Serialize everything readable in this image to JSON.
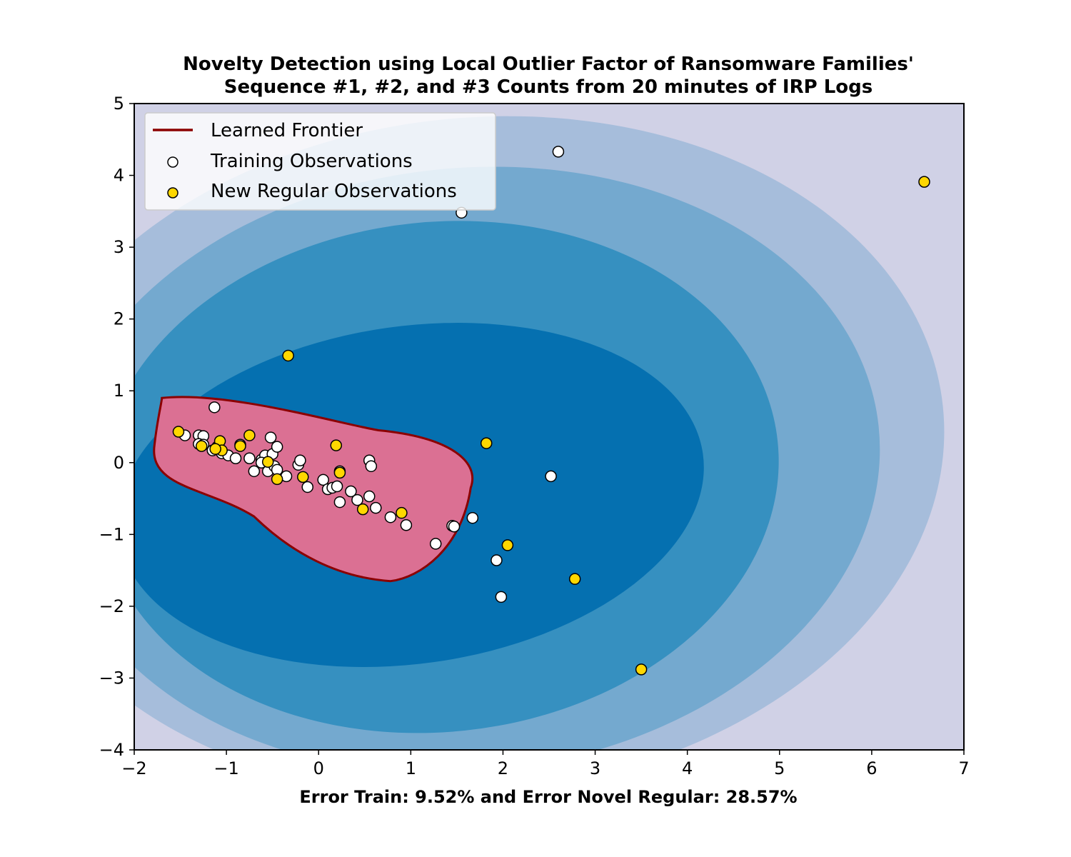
{
  "chart_data": {
    "type": "scatter",
    "title": [
      "Novelty Detection using Local Outlier Factor of Ransomware Families'",
      "Sequence #1, #2, and #3 Counts from 20 minutes of IRP Logs"
    ],
    "xlabel": "Error Train: 9.52% and Error Novel Regular: 28.57%",
    "ylabel": "",
    "xlim": [
      -2,
      7
    ],
    "ylim": [
      -4,
      5
    ],
    "xticks": [
      {
        "value": -2,
        "label": "−2"
      },
      {
        "value": -1,
        "label": "−1"
      },
      {
        "value": 0,
        "label": "0"
      },
      {
        "value": 1,
        "label": "1"
      },
      {
        "value": 2,
        "label": "2"
      },
      {
        "value": 3,
        "label": "3"
      },
      {
        "value": 4,
        "label": "4"
      },
      {
        "value": 5,
        "label": "5"
      },
      {
        "value": 6,
        "label": "6"
      },
      {
        "value": 7,
        "label": "7"
      }
    ],
    "yticks": [
      {
        "value": -4,
        "label": "−4"
      },
      {
        "value": -3,
        "label": "−3"
      },
      {
        "value": -2,
        "label": "−2"
      },
      {
        "value": -1,
        "label": "−1"
      },
      {
        "value": 0,
        "label": "0"
      },
      {
        "value": 1,
        "label": "1"
      },
      {
        "value": 2,
        "label": "2"
      },
      {
        "value": 3,
        "label": "3"
      },
      {
        "value": 4,
        "label": "4"
      },
      {
        "value": 5,
        "label": "5"
      }
    ],
    "grid": false,
    "legend_position": "top-left",
    "legend": [
      {
        "label": "Learned Frontier",
        "kind": "line",
        "color": "#8b0000"
      },
      {
        "label": "Training Observations",
        "kind": "marker",
        "color": "#ffffff"
      },
      {
        "label": "New Regular Observations",
        "kind": "marker",
        "color": "#ffd700"
      }
    ],
    "contour_colors": [
      "#d0d1e6",
      "#a6bddb",
      "#74a9cf",
      "#3690c0",
      "#0570b0",
      "#045a8d"
    ],
    "frontier_fill": "#db7093",
    "frontier_color": "#8b0000",
    "series": [
      {
        "name": "Training Observations",
        "color": "#ffffff",
        "edge_color": "#000000",
        "points": [
          [
            -1.45,
            0.38
          ],
          [
            -1.3,
            0.38
          ],
          [
            -1.25,
            0.37
          ],
          [
            -1.3,
            0.26
          ],
          [
            -1.25,
            0.25
          ],
          [
            -1.15,
            0.17
          ],
          [
            -1.1,
            0.22
          ],
          [
            -1.05,
            0.13
          ],
          [
            -0.98,
            0.1
          ],
          [
            -0.9,
            0.06
          ],
          [
            -0.85,
            0.25
          ],
          [
            -0.75,
            0.06
          ],
          [
            -0.7,
            -0.12
          ],
          [
            -0.62,
            0.04
          ],
          [
            -0.58,
            0.1
          ],
          [
            -0.55,
            -0.12
          ],
          [
            -0.52,
            0.35
          ],
          [
            -0.5,
            0.12
          ],
          [
            -0.48,
            -0.05
          ],
          [
            -0.45,
            0.22
          ],
          [
            -0.45,
            -0.1
          ],
          [
            -0.35,
            -0.19
          ],
          [
            -0.22,
            -0.03
          ],
          [
            -0.2,
            0.03
          ],
          [
            -0.12,
            -0.34
          ],
          [
            -1.13,
            0.77
          ],
          [
            0.05,
            -0.24
          ],
          [
            0.1,
            -0.37
          ],
          [
            0.15,
            -0.35
          ],
          [
            0.2,
            -0.33
          ],
          [
            0.23,
            -0.12
          ],
          [
            0.23,
            -0.55
          ],
          [
            0.35,
            -0.4
          ],
          [
            0.42,
            -0.52
          ],
          [
            0.55,
            0.03
          ],
          [
            0.55,
            -0.47
          ],
          [
            0.57,
            -0.05
          ],
          [
            0.62,
            -0.63
          ],
          [
            0.78,
            -0.76
          ],
          [
            0.95,
            -0.87
          ],
          [
            1.27,
            -1.13
          ],
          [
            1.45,
            -0.88
          ],
          [
            1.47,
            -0.89
          ],
          [
            1.67,
            -0.77
          ],
          [
            1.93,
            -1.36
          ],
          [
            1.98,
            -1.87
          ],
          [
            2.52,
            -0.19
          ],
          [
            2.6,
            4.33
          ],
          [
            1.55,
            3.48
          ],
          [
            -0.62,
            0.0
          ]
        ]
      },
      {
        "name": "New Regular Observations",
        "color": "#ffd700",
        "edge_color": "#000000",
        "points": [
          [
            -1.52,
            0.43
          ],
          [
            -1.27,
            0.23
          ],
          [
            -1.07,
            0.3
          ],
          [
            -1.05,
            0.17
          ],
          [
            -1.12,
            0.19
          ],
          [
            -0.85,
            0.23
          ],
          [
            -0.75,
            0.38
          ],
          [
            -0.55,
            0.01
          ],
          [
            -0.45,
            -0.23
          ],
          [
            -0.17,
            -0.2
          ],
          [
            0.19,
            0.24
          ],
          [
            0.23,
            -0.14
          ],
          [
            0.48,
            -0.65
          ],
          [
            0.9,
            -0.7
          ],
          [
            1.82,
            0.27
          ],
          [
            2.05,
            -1.15
          ],
          [
            2.78,
            -1.62
          ],
          [
            3.5,
            -2.88
          ],
          [
            6.57,
            3.91
          ],
          [
            -0.33,
            1.49
          ]
        ]
      }
    ]
  }
}
